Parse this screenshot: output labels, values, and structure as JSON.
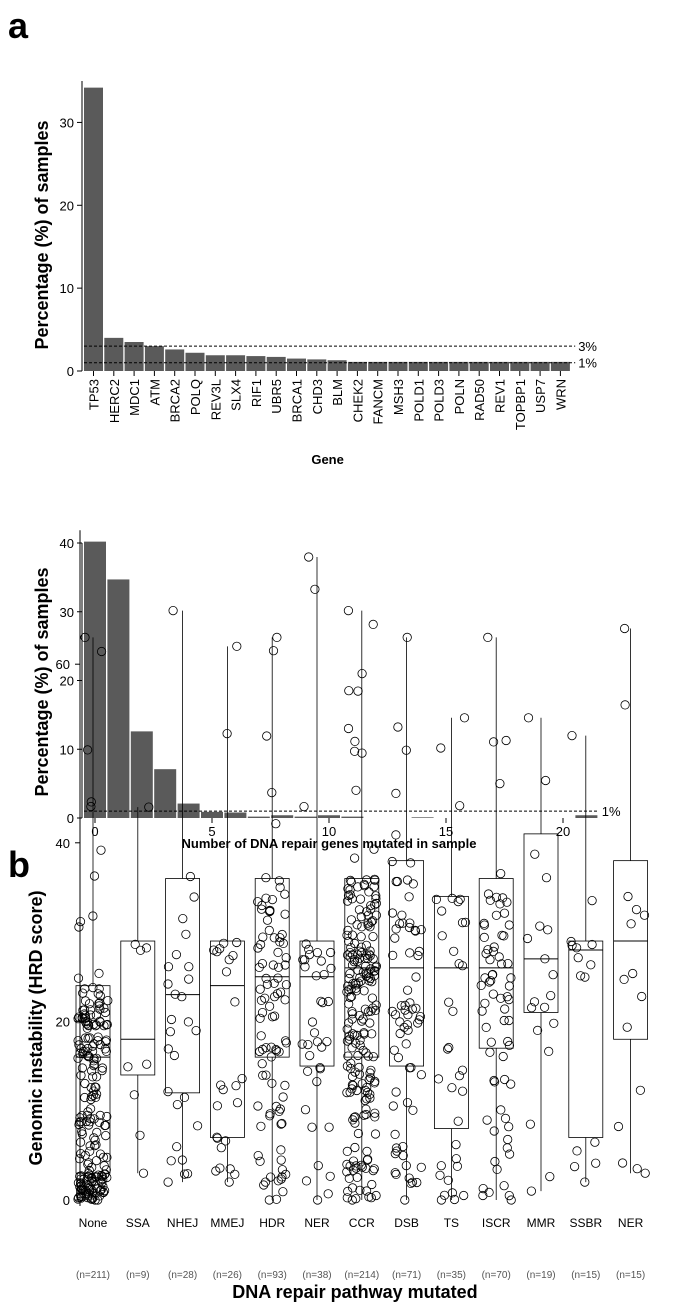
{
  "panels": {
    "a": "a",
    "b": "b"
  },
  "chart_data": [
    {
      "type": "bar",
      "xlabel": "Gene",
      "ylabel": "Percentage (%) of samples",
      "ylim": [
        0,
        35
      ],
      "yticks": [
        0,
        10,
        20,
        30
      ],
      "bar_color": "#5a5a5a",
      "categories": [
        "TP53",
        "HERC2",
        "MDC1",
        "ATM",
        "BRCA2",
        "POLQ",
        "REV3L",
        "SLX4",
        "RIF1",
        "UBR5",
        "BRCA1",
        "CHD3",
        "BLM",
        "CHEK2",
        "FANCM",
        "MSH3",
        "POLD1",
        "POLD3",
        "POLN",
        "RAD50",
        "REV1",
        "TOPBP1",
        "USP7",
        "WRN"
      ],
      "values": [
        34.2,
        4.0,
        3.5,
        3.0,
        2.6,
        2.2,
        1.9,
        1.9,
        1.8,
        1.7,
        1.5,
        1.4,
        1.3,
        1.1,
        1.1,
        1.1,
        1.1,
        1.1,
        1.1,
        1.1,
        1.1,
        1.1,
        1.1,
        1.1
      ],
      "reference_lines": [
        {
          "value": 3,
          "label": "3%"
        },
        {
          "value": 1,
          "label": "1%"
        }
      ]
    },
    {
      "type": "bar",
      "xlabel": "Number of DNA repair genes mutated in sample",
      "ylabel": "Percentage (%) of samples",
      "ylim": [
        0,
        40
      ],
      "yticks": [
        0,
        10,
        20,
        30,
        40
      ],
      "xticks": [
        0,
        5,
        10,
        15,
        20
      ],
      "bar_color": "#5a5a5a",
      "x": [
        0,
        1,
        2,
        3,
        4,
        5,
        6,
        7,
        8,
        9,
        10,
        11,
        14,
        21
      ],
      "values": [
        40.2,
        34.7,
        12.6,
        7.1,
        2.1,
        0.9,
        0.8,
        0.2,
        0.4,
        0.2,
        0.4,
        0.2,
        0.1,
        0.4
      ],
      "reference_lines": [
        {
          "value": 1,
          "label": "1%"
        }
      ]
    },
    {
      "type": "box",
      "xlabel": "DNA repair pathway mutated",
      "ylabel": "Genomic instability (HRD score)",
      "ylim": [
        -2,
        75
      ],
      "yticks": [
        0,
        20,
        40,
        60
      ],
      "categories": [
        "None",
        "SSA",
        "NHEJ",
        "MMEJ",
        "HDR",
        "NER",
        "CCR",
        "DSB",
        "TS",
        "ISCR",
        "MMR",
        "SSBR",
        "NER"
      ],
      "counts": [
        "(n=211)",
        "(n=9)",
        "(n=28)",
        "(n=26)",
        "(n=93)",
        "(n=38)",
        "(n=214)",
        "(n=71)",
        "(n=35)",
        "(n=70)",
        "(n=19)",
        "(n=15)",
        "(n=15)"
      ],
      "n": [
        211,
        9,
        28,
        26,
        93,
        38,
        214,
        71,
        35,
        70,
        19,
        15,
        15
      ],
      "boxes": [
        {
          "min": 0,
          "q1": 3,
          "median": 16,
          "q3": 24,
          "max": 63
        },
        {
          "min": 3,
          "q1": 14,
          "median": 18,
          "q3": 29,
          "max": 44
        },
        {
          "min": 2,
          "q1": 12,
          "median": 23,
          "q3": 36,
          "max": 66
        },
        {
          "min": 2,
          "q1": 7,
          "median": 24,
          "q3": 29,
          "max": 62
        },
        {
          "min": 0,
          "q1": 16,
          "median": 25,
          "q3": 36,
          "max": 63
        },
        {
          "min": 0,
          "q1": 15,
          "median": 25,
          "q3": 29,
          "max": 72
        },
        {
          "min": 0,
          "q1": 16,
          "median": 26,
          "q3": 36,
          "max": 66
        },
        {
          "min": 0,
          "q1": 15,
          "median": 26,
          "q3": 38,
          "max": 63
        },
        {
          "min": 0,
          "q1": 8,
          "median": 26,
          "q3": 34,
          "max": 54
        },
        {
          "min": 0,
          "q1": 17,
          "median": 26,
          "q3": 36,
          "max": 63
        },
        {
          "min": 1,
          "q1": 21,
          "median": 27,
          "q3": 41,
          "max": 54
        },
        {
          "min": 2,
          "q1": 7,
          "median": 28,
          "q3": 29,
          "max": 52
        },
        {
          "min": 3,
          "q1": 18,
          "median": 29,
          "q3": 38,
          "max": 64
        }
      ]
    }
  ]
}
